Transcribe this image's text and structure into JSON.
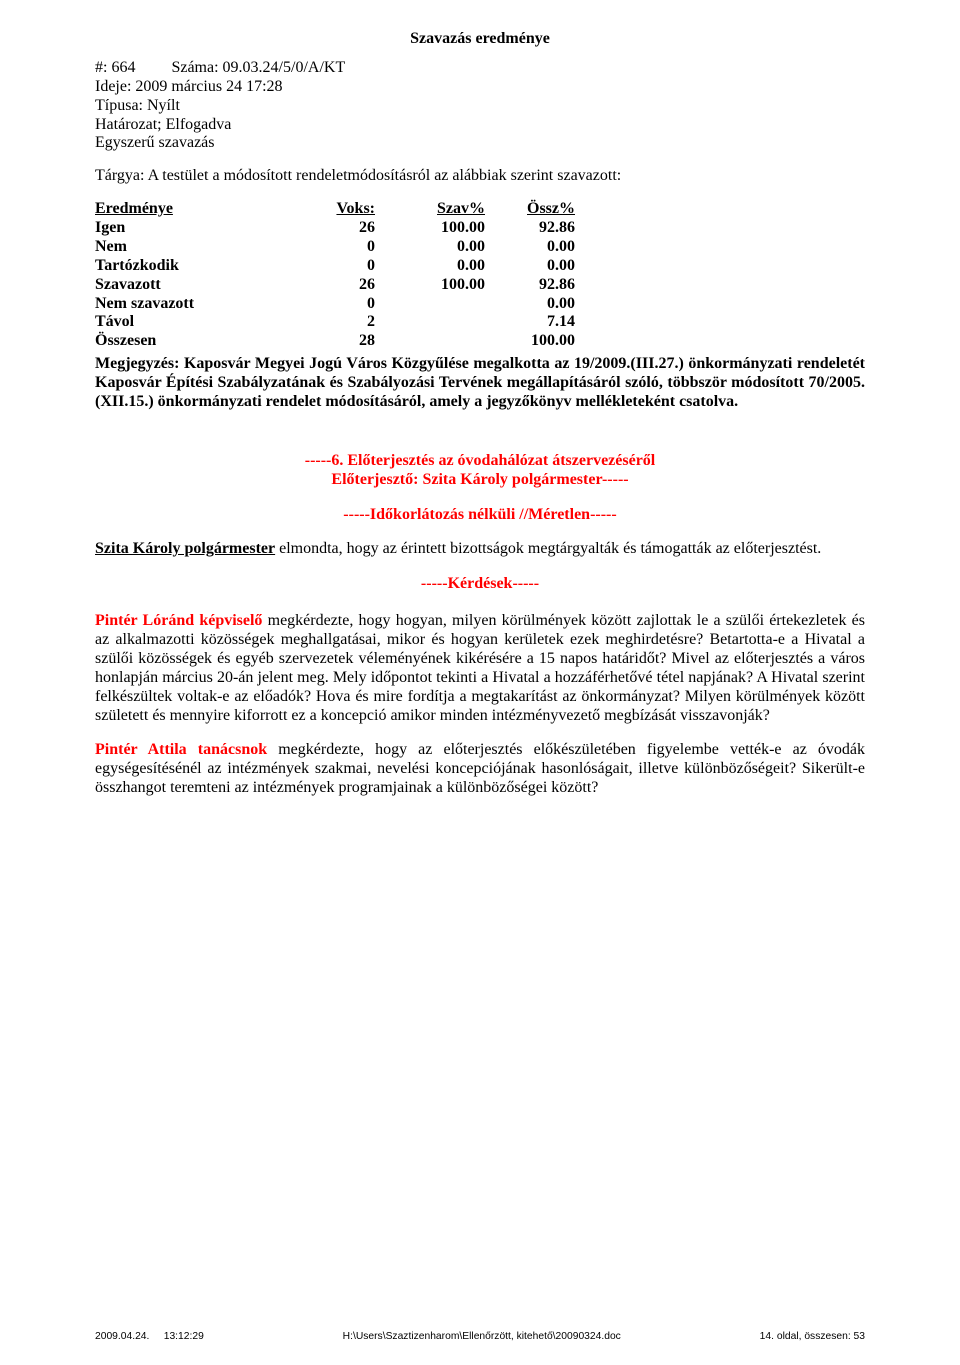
{
  "title": "Szavazás eredménye",
  "meta": {
    "hash_label": "#: ",
    "hash": "664",
    "szama_label": "Száma: ",
    "szama": "09.03.24/5/0/A/KT",
    "ideje_label": "Ideje: ",
    "ideje": "2009 március 24 17:28",
    "tipusa_label": "Típusa: ",
    "tipusa": "Nyílt",
    "hatarozat": "Határozat;      Elfogadva",
    "szavazas_mod": "Egyszerű szavazás"
  },
  "subject": {
    "label": "Tárgya: ",
    "text": "A testület a módosított rendeletmódosításról az alábbiak szerint szavazott:"
  },
  "vote": {
    "headers": {
      "eredmenye": "Eredménye",
      "voks": "Voks:",
      "szav": "Szav%",
      "ossz": "Össz%"
    },
    "rows": [
      {
        "label": "Igen",
        "voks": "26",
        "szav": "100.00",
        "ossz": "92.86"
      },
      {
        "label": "Nem",
        "voks": "0",
        "szav": "0.00",
        "ossz": "0.00"
      },
      {
        "label": "Tartózkodik",
        "voks": "0",
        "szav": "0.00",
        "ossz": "0.00"
      },
      {
        "label": "Szavazott",
        "voks": "26",
        "szav": "100.00",
        "ossz": "92.86"
      },
      {
        "label": "Nem szavazott",
        "voks": "0",
        "szav": "",
        "ossz": "0.00"
      },
      {
        "label": "Távol",
        "voks": "2",
        "szav": "",
        "ossz": "7.14"
      },
      {
        "label": "Összesen",
        "voks": "28",
        "szav": "",
        "ossz": "100.00"
      }
    ]
  },
  "note": "Megjegyzés: Kaposvár Megyei Jogú Város Közgyűlése megalkotta az 19/2009.(III.27.) önkormányzati rendeletét Kaposvár Építési Szabályzatának és Szabályozási Tervének megállapításáról szóló, többször módosított 70/2005.(XII.15.) önkormányzati rendelet módosításáról, amely a jegyzőkönyv mellékleteként csatolva.",
  "section6": {
    "heading_line1": "-----6. Előterjesztés az óvodahálózat átszervezéséről",
    "heading_line2": "Előterjesztő: Szita Károly polgármester-----",
    "timing": "-----Időkorlátozás nélküli //Méretlen-----"
  },
  "para1": {
    "name": "Szita Károly polgármester",
    "rest": " elmondta, hogy az érintett bizottságok megtárgyalták és támogatták az előterjesztést."
  },
  "kerdesek": "-----Kérdések-----",
  "para2": {
    "name": "Pintér Lóránd képviselő",
    "rest": " megkérdezte, hogy hogyan, milyen körülmények között zajlottak le a szülői értekezletek és az alkalmazotti közösségek meghallgatásai, mikor és hogyan kerületek ezek meghirdetésre? Betartotta-e a Hivatal a szülői közösségek és egyéb szervezetek véleményének kikérésére a 15 napos határidőt? Mivel az előterjesztés a város honlapján március 20-án jelent meg. Mely időpontot tekinti a Hivatal a hozzáférhetővé tétel napjának? A Hivatal szerint felkészültek voltak-e az előadók? Hova és mire fordítja a megtakarítást az önkormányzat? Milyen körülmények között született és mennyire kiforrott ez a koncepció amikor minden intézményvezető megbízását visszavonják?"
  },
  "para3": {
    "name": "Pintér Attila tanácsnok",
    "rest": " megkérdezte, hogy az előterjesztés előkészületében figyelembe vették-e az óvodák egységesítésénél az intézmények szakmai, nevelési koncepciójának hasonlóságait, illetve különbözőségeit? Sikerült-e összhangot teremteni az intézmények programjainak a különbözőségei között?"
  },
  "footer": {
    "left_date": "2009.04.24.",
    "left_time": "13:12:29",
    "center": "H:\\Users\\Szaztizenharom\\Ellenőrzött,   kitehető\\20090324.doc",
    "right": "14.   oldal,   összesen:     53"
  }
}
